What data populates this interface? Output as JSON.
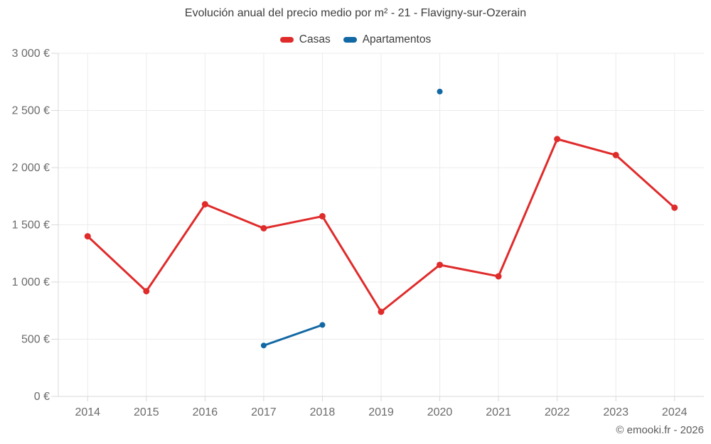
{
  "footer": {
    "copyright": "© emooki.fr - 2026"
  },
  "chart_data": {
    "type": "line",
    "title": "Evolución anual del precio medio por m² - 21 - Flavigny-sur-Ozerain",
    "categories": [
      "2014",
      "2015",
      "2016",
      "2017",
      "2018",
      "2019",
      "2020",
      "2021",
      "2022",
      "2023",
      "2024"
    ],
    "series": [
      {
        "name": "Casas",
        "color": "#e02b2b",
        "values": [
          1400,
          920,
          1680,
          1470,
          1575,
          740,
          1150,
          1050,
          2250,
          2110,
          1650
        ]
      },
      {
        "name": "Apartamentos",
        "color": "#1268a4",
        "values": [
          null,
          null,
          null,
          445,
          625,
          null,
          2665,
          null,
          null,
          null,
          null
        ]
      }
    ],
    "ylim": [
      0,
      3000
    ],
    "y_ticks": [
      {
        "value": 0,
        "label": "0 €"
      },
      {
        "value": 500,
        "label": "500 €"
      },
      {
        "value": 1000,
        "label": "1 000 €"
      },
      {
        "value": 1500,
        "label": "1 500 €"
      },
      {
        "value": 2000,
        "label": "2 000 €"
      },
      {
        "value": 2500,
        "label": "2 500 €"
      },
      {
        "value": 3000,
        "label": "3 000 €"
      }
    ],
    "xlabel": "",
    "ylabel": "",
    "grid": true,
    "legend_position": "top",
    "styles": {
      "grid_color": "#ebebeb",
      "axis_color": "#d9d9d9",
      "tick_label_color": "#6b6b6b",
      "title_color": "#3d3d3d"
    }
  }
}
